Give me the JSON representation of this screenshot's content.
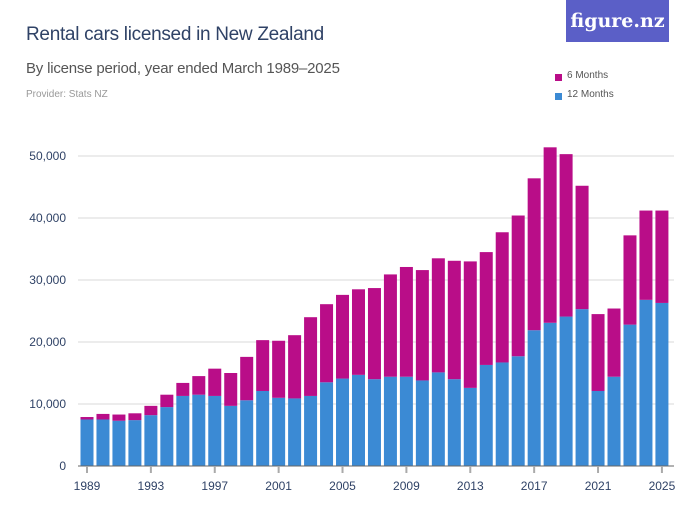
{
  "header": {
    "title": "Rental cars licensed in New Zealand",
    "subtitle": "By license period, year ended March 1989–2025",
    "provider": "Provider: Stats NZ",
    "logo": "figure.nz"
  },
  "chart_data": {
    "type": "bar",
    "stacked": true,
    "title": "Rental cars licensed in New Zealand",
    "subtitle": "By license period, year ended March 1989–2025",
    "xlabel": "",
    "ylabel": "",
    "ylim": [
      0,
      52000
    ],
    "yticks": [
      0,
      10000,
      20000,
      30000,
      40000,
      50000
    ],
    "ytick_labels": [
      "0",
      "10,000",
      "20,000",
      "30,000",
      "40,000",
      "50,000"
    ],
    "xtick_labels": [
      "1989",
      "1993",
      "1997",
      "2001",
      "2005",
      "2009",
      "2013",
      "2017",
      "2021",
      "2025"
    ],
    "grid": true,
    "legend_position": "top-right",
    "categories": [
      "1989",
      "1990",
      "1991",
      "1992",
      "1993",
      "1994",
      "1995",
      "1996",
      "1997",
      "1998",
      "1999",
      "2000",
      "2001",
      "2002",
      "2003",
      "2004",
      "2005",
      "2006",
      "2007",
      "2008",
      "2009",
      "2010",
      "2011",
      "2012",
      "2013",
      "2014",
      "2015",
      "2016",
      "2017",
      "2018",
      "2019",
      "2020",
      "2021",
      "2022",
      "2023",
      "2024",
      "2025"
    ],
    "series": [
      {
        "name": "12 Months",
        "color": "#3b8ad4",
        "values": [
          7500,
          7500,
          7300,
          7400,
          8200,
          9500,
          11300,
          11500,
          11300,
          9700,
          10600,
          12100,
          11000,
          10900,
          11300,
          13500,
          14100,
          14700,
          14000,
          14400,
          14400,
          13800,
          15100,
          14000,
          12600,
          16300,
          16700,
          17700,
          21900,
          23100,
          24100,
          25300,
          12100,
          14400,
          22800,
          26800,
          26300
        ]
      },
      {
        "name": "6 Months",
        "color": "#b90d88",
        "values": [
          400,
          900,
          1000,
          1100,
          1500,
          2000,
          2100,
          3000,
          4400,
          5300,
          7000,
          8200,
          9200,
          10200,
          12700,
          12600,
          13500,
          13800,
          14700,
          16500,
          17700,
          17800,
          18400,
          19100,
          20400,
          18200,
          21000,
          22700,
          24500,
          28300,
          26200,
          19900,
          12400,
          11000,
          14400,
          14400,
          14900
        ]
      }
    ],
    "legend": [
      "6 Months",
      "12 Months"
    ]
  }
}
